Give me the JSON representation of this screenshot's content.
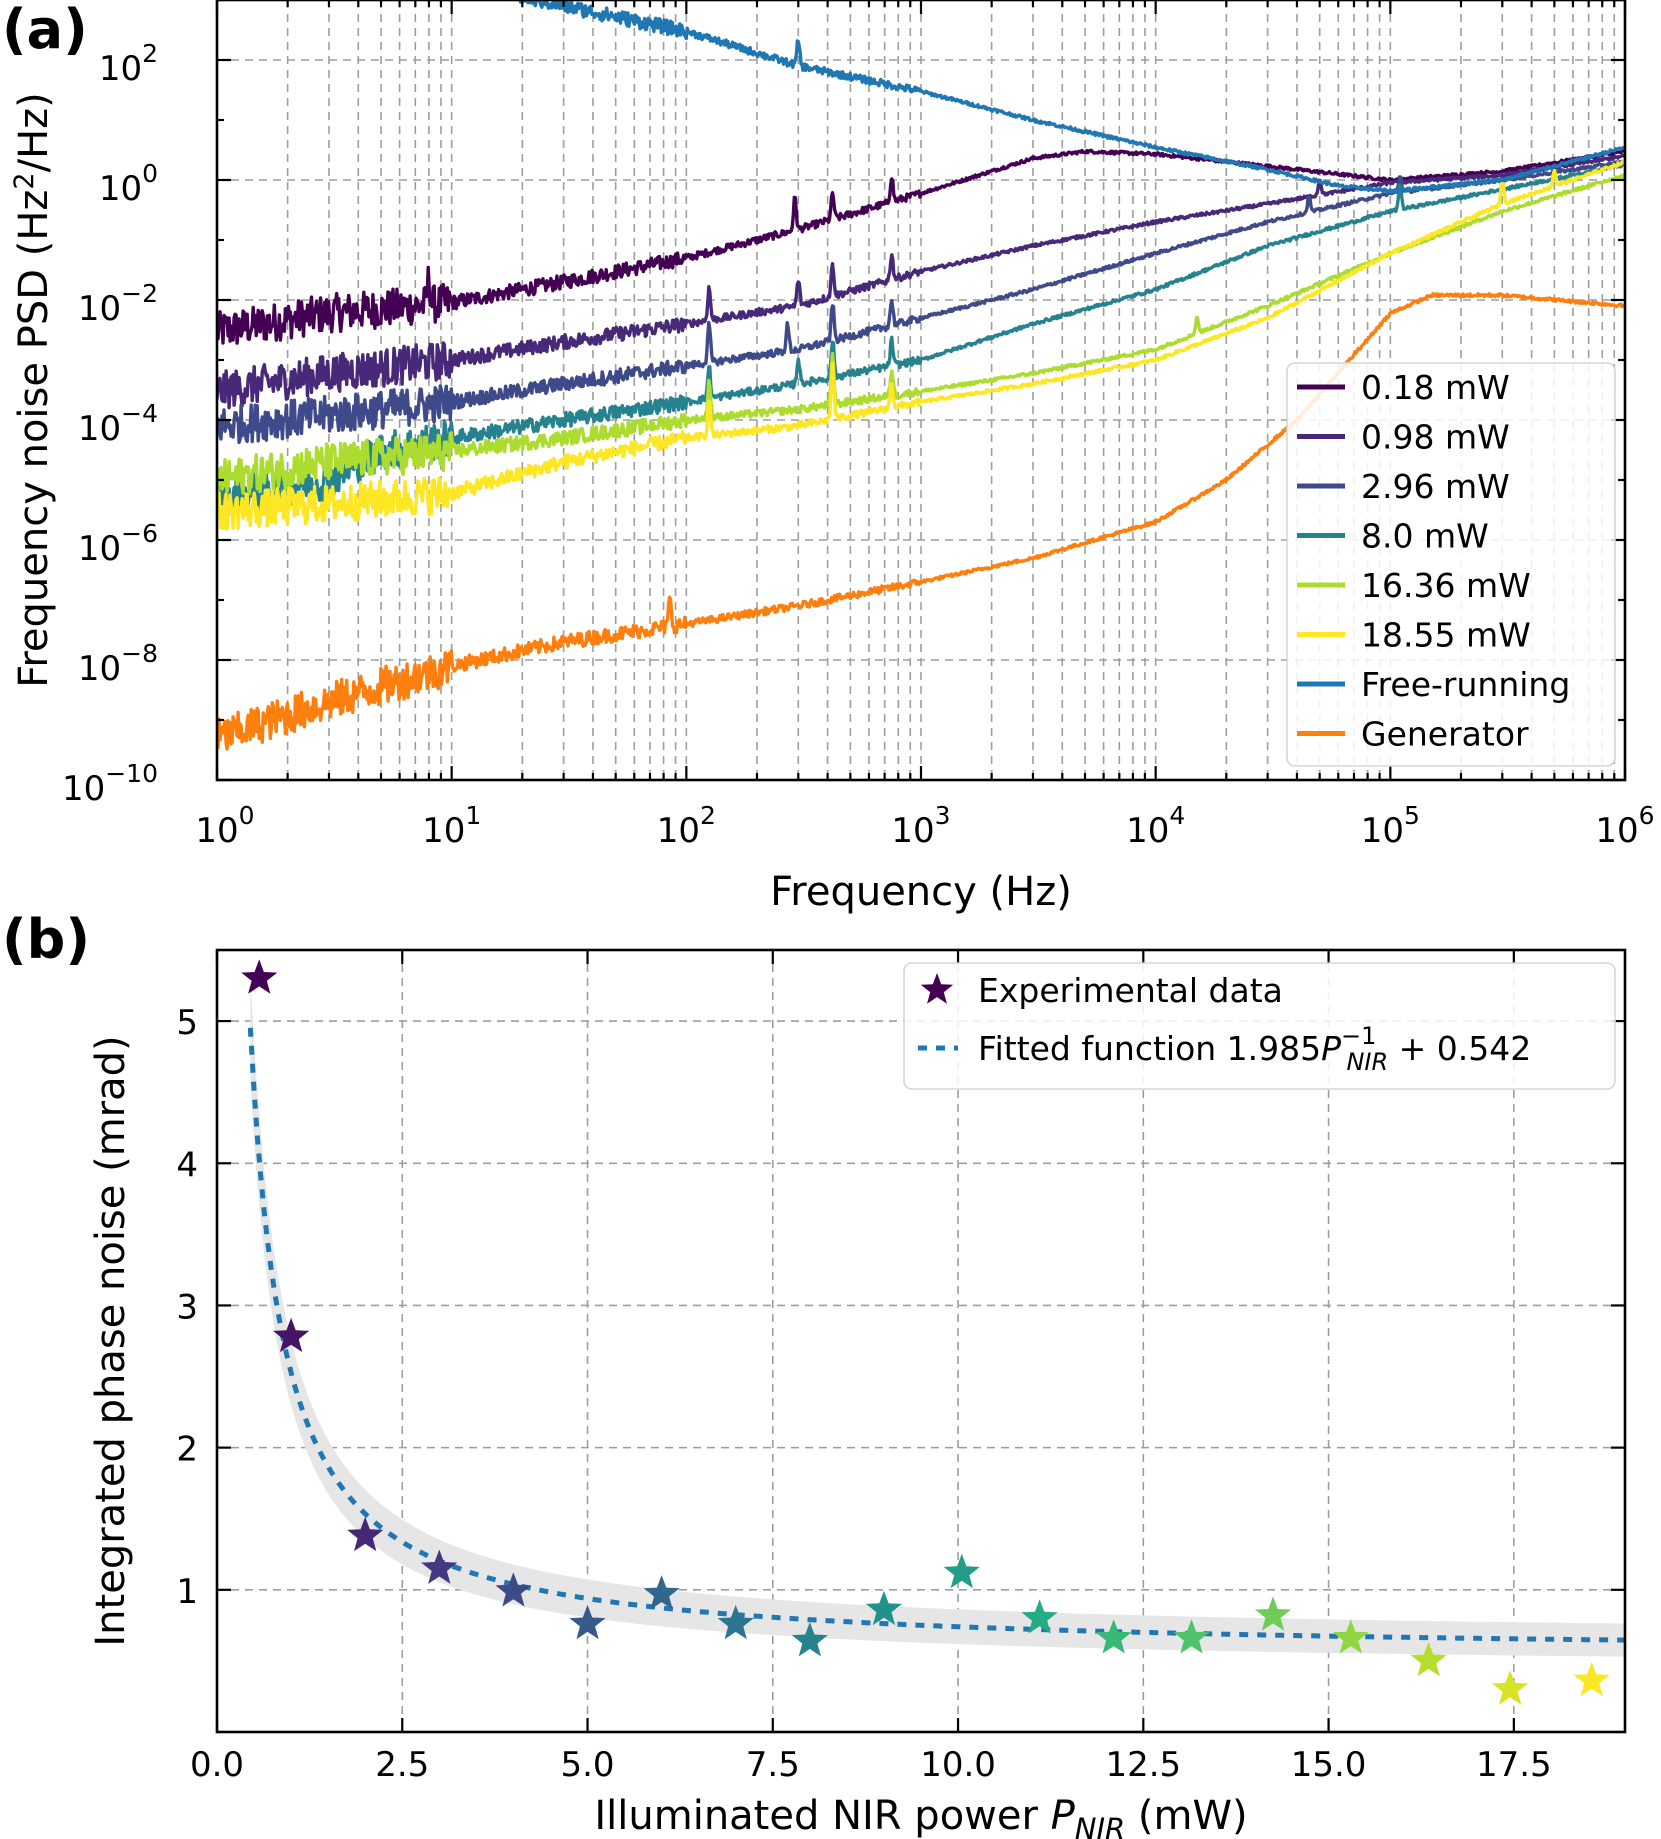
{
  "panels": [
    {
      "id": "a",
      "label": "(a)"
    },
    {
      "id": "b",
      "label": "(b)"
    }
  ],
  "chart_data": [
    {
      "type": "line",
      "panel": "(a)",
      "xlabel": "Frequency (Hz)",
      "ylabel": "Frequency noise PSD (Hz²/Hz)",
      "ylabel_parts": {
        "pre": "Frequency noise PSD (Hz",
        "sup": "2",
        "post": "/Hz)"
      },
      "x_scale": "log",
      "y_scale": "log",
      "xlim": [
        1,
        1000000
      ],
      "ylim": [
        1e-10,
        1000
      ],
      "x_ticks": [
        {
          "base": "10",
          "exp": "0",
          "value": 1
        },
        {
          "base": "10",
          "exp": "1",
          "value": 10
        },
        {
          "base": "10",
          "exp": "2",
          "value": 100
        },
        {
          "base": "10",
          "exp": "3",
          "value": 1000
        },
        {
          "base": "10",
          "exp": "4",
          "value": 10000
        },
        {
          "base": "10",
          "exp": "5",
          "value": 100000
        },
        {
          "base": "10",
          "exp": "6",
          "value": 1000000
        }
      ],
      "y_ticks": [
        {
          "base": "10",
          "exp": "−10",
          "value": 1e-10
        },
        {
          "base": "10",
          "exp": "−8",
          "value": 1e-08
        },
        {
          "base": "10",
          "exp": "−6",
          "value": 1e-06
        },
        {
          "base": "10",
          "exp": "−4",
          "value": 0.0001
        },
        {
          "base": "10",
          "exp": "−2",
          "value": 0.01
        },
        {
          "base": "10",
          "exp": "0",
          "value": 1
        },
        {
          "base": "10",
          "exp": "2",
          "value": 100
        }
      ],
      "grid": true,
      "legend_position": "lower right",
      "series": [
        {
          "name": "0.18 mW",
          "color": "#440154",
          "points": [
            [
              1,
              0.003
            ],
            [
              3,
              0.006
            ],
            [
              10,
              0.009
            ],
            [
              30,
              0.02
            ],
            [
              100,
              0.05
            ],
            [
              300,
              0.15
            ],
            [
              1000,
              0.6
            ],
            [
              3000,
              2.3
            ],
            [
              5000,
              3.0
            ],
            [
              10000,
              2.7
            ],
            [
              30000,
              1.7
            ],
            [
              100000,
              1.0
            ],
            [
              300000,
              1.4
            ],
            [
              1000000,
              3.0
            ]
          ],
          "spikes": [
            [
              8,
              3
            ],
            [
              290,
              4
            ],
            [
              420,
              3
            ],
            [
              750,
              3
            ]
          ]
        },
        {
          "name": "0.98 mW",
          "color": "#482878",
          "points": [
            [
              1,
              0.0003
            ],
            [
              3,
              0.0006
            ],
            [
              10,
              0.001
            ],
            [
              30,
              0.002
            ],
            [
              100,
              0.004
            ],
            [
              300,
              0.008
            ],
            [
              1000,
              0.03
            ],
            [
              3000,
              0.08
            ],
            [
              10000,
              0.2
            ],
            [
              30000,
              0.4
            ],
            [
              100000,
              0.9
            ],
            [
              300000,
              1.2
            ],
            [
              1000000,
              2.5
            ]
          ],
          "spikes": [
            [
              125,
              4
            ],
            [
              300,
              3
            ],
            [
              420,
              4
            ],
            [
              750,
              3
            ],
            [
              50000,
              2
            ]
          ]
        },
        {
          "name": "2.96 mW",
          "color": "#3e4a89",
          "points": [
            [
              1,
              8e-05
            ],
            [
              3,
              0.00012
            ],
            [
              10,
              0.0002
            ],
            [
              30,
              0.0004
            ],
            [
              100,
              0.0008
            ],
            [
              300,
              0.0015
            ],
            [
              1000,
              0.005
            ],
            [
              3000,
              0.015
            ],
            [
              10000,
              0.06
            ],
            [
              30000,
              0.2
            ],
            [
              100000,
              0.6
            ],
            [
              300000,
              1.0
            ],
            [
              1000000,
              2.0
            ]
          ],
          "spikes": [
            [
              125,
              5
            ],
            [
              270,
              3
            ],
            [
              420,
              5
            ],
            [
              750,
              3
            ],
            [
              45000,
              2
            ],
            [
              110000,
              2
            ]
          ]
        },
        {
          "name": "8.0 mW",
          "color": "#26828e",
          "points": [
            [
              1,
              5e-06
            ],
            [
              3,
              1e-05
            ],
            [
              5,
              3e-05
            ],
            [
              10,
              5e-05
            ],
            [
              30,
              0.0001
            ],
            [
              100,
              0.0002
            ],
            [
              300,
              0.0004
            ],
            [
              1000,
              0.001
            ],
            [
              3000,
              0.004
            ],
            [
              10000,
              0.015
            ],
            [
              30000,
              0.08
            ],
            [
              100000,
              0.3
            ],
            [
              300000,
              0.7
            ],
            [
              1000000,
              1.8
            ]
          ],
          "spikes": [
            [
              125,
              4
            ],
            [
              300,
              3
            ],
            [
              420,
              5
            ],
            [
              750,
              3
            ],
            [
              110000,
              3
            ]
          ]
        },
        {
          "name": "16.36 mW",
          "color": "#addc30",
          "points": [
            [
              1,
              1e-05
            ],
            [
              3,
              2e-05
            ],
            [
              10,
              3e-05
            ],
            [
              30,
              5e-05
            ],
            [
              100,
              0.0001
            ],
            [
              300,
              0.00015
            ],
            [
              1000,
              0.0003
            ],
            [
              3000,
              0.0006
            ],
            [
              10000,
              0.0015
            ],
            [
              30000,
              0.008
            ],
            [
              100000,
              0.06
            ],
            [
              300000,
              0.3
            ],
            [
              1000000,
              1.2
            ]
          ],
          "spikes": [
            [
              125,
              5
            ],
            [
              420,
              8
            ],
            [
              750,
              3
            ],
            [
              15000,
              2
            ]
          ]
        },
        {
          "name": "18.55 mW",
          "color": "#fde725",
          "points": [
            [
              1,
              3e-06
            ],
            [
              3,
              4e-06
            ],
            [
              10,
              6e-06
            ],
            [
              30,
              2e-05
            ],
            [
              100,
              5e-05
            ],
            [
              300,
              8e-05
            ],
            [
              1000,
              0.0002
            ],
            [
              3000,
              0.0004
            ],
            [
              10000,
              0.001
            ],
            [
              30000,
              0.005
            ],
            [
              100000,
              0.06
            ],
            [
              300000,
              0.4
            ],
            [
              1000000,
              2.0
            ]
          ],
          "spikes": [
            [
              125,
              5
            ],
            [
              420,
              10
            ],
            [
              750,
              3
            ],
            [
              300000,
              3
            ],
            [
              500000,
              2
            ]
          ]
        },
        {
          "name": "Free-running",
          "color": "#1f77b4",
          "points": [
            [
              10,
              2000
            ],
            [
              30,
              800
            ],
            [
              100,
              300
            ],
            [
              300,
              80
            ],
            [
              1000,
              30
            ],
            [
              3000,
              10
            ],
            [
              10000,
              3.5
            ],
            [
              30000,
              1.5
            ],
            [
              60000,
              0.8
            ],
            [
              100000,
              0.65
            ],
            [
              300000,
              1.0
            ],
            [
              1000000,
              3.5
            ]
          ],
          "spikes": [
            [
              300,
              3
            ]
          ]
        },
        {
          "name": "Generator",
          "color": "#ff7f0e",
          "points": [
            [
              1,
              5e-10
            ],
            [
              3,
              2e-09
            ],
            [
              10,
              8e-09
            ],
            [
              30,
              2e-08
            ],
            [
              100,
              4e-08
            ],
            [
              300,
              8e-08
            ],
            [
              1000,
              2e-07
            ],
            [
              3000,
              5e-07
            ],
            [
              10000,
              2e-06
            ],
            [
              20000,
              1e-05
            ],
            [
              40000,
              0.0001
            ],
            [
              100000,
              0.006
            ],
            [
              150000,
              0.012
            ],
            [
              300000,
              0.012
            ],
            [
              1000000,
              0.008
            ]
          ],
          "spikes": [
            [
              85,
              3
            ]
          ]
        }
      ]
    },
    {
      "type": "scatter",
      "panel": "(b)",
      "xlabel_parts": {
        "pre": "Illuminated NIR power ",
        "sym": "P",
        "sub": "NIR",
        "post": " (mW)"
      },
      "ylabel": "Integrated phase noise (mrad)",
      "xlim": [
        0,
        19.0
      ],
      "ylim": [
        0,
        5.5
      ],
      "x_ticks": [
        "0.0",
        "2.5",
        "5.0",
        "7.5",
        "10.0",
        "12.5",
        "15.0",
        "17.5"
      ],
      "y_ticks": [
        "1",
        "2",
        "3",
        "4",
        "5"
      ],
      "grid": true,
      "legend_position": "upper right",
      "legend": [
        {
          "label": "Experimental data"
        },
        {
          "label_parts": {
            "pre": "Fitted function 1.985",
            "sym": "P",
            "sup": "−1",
            "sub": "NIR",
            "post": " + 0.542"
          }
        }
      ],
      "series": [
        {
          "name": "Experimental data",
          "colormap": "viridis",
          "points": [
            [
              0.57,
              5.3
            ],
            [
              1.0,
              2.78
            ],
            [
              2.0,
              1.38
            ],
            [
              3.0,
              1.15
            ],
            [
              4.0,
              0.99
            ],
            [
              5.0,
              0.76
            ],
            [
              6.0,
              0.97
            ],
            [
              7.0,
              0.76
            ],
            [
              8.0,
              0.64
            ],
            [
              9.0,
              0.86
            ],
            [
              10.05,
              1.12
            ],
            [
              11.1,
              0.8
            ],
            [
              12.1,
              0.66
            ],
            [
              13.15,
              0.66
            ],
            [
              14.25,
              0.82
            ],
            [
              15.3,
              0.66
            ],
            [
              16.35,
              0.5
            ],
            [
              17.45,
              0.3
            ],
            [
              18.55,
              0.36
            ]
          ]
        },
        {
          "name": "Fitted function",
          "color": "#1f77b4",
          "coef_a": 1.985,
          "coef_b": 0.542,
          "x_range": [
            0.45,
            19.0
          ]
        }
      ],
      "confidence_band_color": "#e6e6e6"
    }
  ]
}
